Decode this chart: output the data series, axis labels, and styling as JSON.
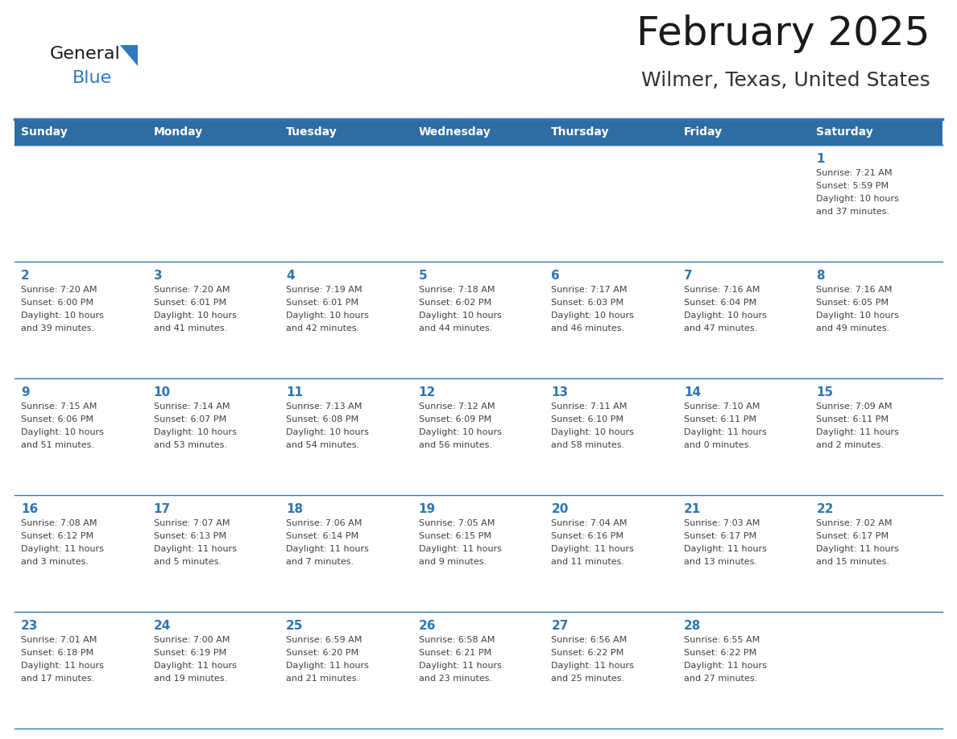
{
  "title": "February 2025",
  "subtitle": "Wilmer, Texas, United States",
  "days_of_week": [
    "Sunday",
    "Monday",
    "Tuesday",
    "Wednesday",
    "Thursday",
    "Friday",
    "Saturday"
  ],
  "header_bg": "#2E6DA4",
  "header_text": "#FFFFFF",
  "cell_bg": "#FFFFFF",
  "separator_color": "#2E75B6",
  "text_color": "#404040",
  "day_num_color": "#2E75B6",
  "title_color": "#1a1a1a",
  "subtitle_color": "#333333",
  "logo_general_color": "#1a1a1a",
  "logo_blue_color": "#2E7ABE",
  "logo_triangle_color": "#2E7ABE",
  "calendar": [
    [
      null,
      null,
      null,
      null,
      null,
      null,
      {
        "day": 1,
        "sunrise": "7:21 AM",
        "sunset": "5:59 PM",
        "daylight": "10 hours and 37 minutes."
      }
    ],
    [
      {
        "day": 2,
        "sunrise": "7:20 AM",
        "sunset": "6:00 PM",
        "daylight": "10 hours and 39 minutes."
      },
      {
        "day": 3,
        "sunrise": "7:20 AM",
        "sunset": "6:01 PM",
        "daylight": "10 hours and 41 minutes."
      },
      {
        "day": 4,
        "sunrise": "7:19 AM",
        "sunset": "6:01 PM",
        "daylight": "10 hours and 42 minutes."
      },
      {
        "day": 5,
        "sunrise": "7:18 AM",
        "sunset": "6:02 PM",
        "daylight": "10 hours and 44 minutes."
      },
      {
        "day": 6,
        "sunrise": "7:17 AM",
        "sunset": "6:03 PM",
        "daylight": "10 hours and 46 minutes."
      },
      {
        "day": 7,
        "sunrise": "7:16 AM",
        "sunset": "6:04 PM",
        "daylight": "10 hours and 47 minutes."
      },
      {
        "day": 8,
        "sunrise": "7:16 AM",
        "sunset": "6:05 PM",
        "daylight": "10 hours and 49 minutes."
      }
    ],
    [
      {
        "day": 9,
        "sunrise": "7:15 AM",
        "sunset": "6:06 PM",
        "daylight": "10 hours and 51 minutes."
      },
      {
        "day": 10,
        "sunrise": "7:14 AM",
        "sunset": "6:07 PM",
        "daylight": "10 hours and 53 minutes."
      },
      {
        "day": 11,
        "sunrise": "7:13 AM",
        "sunset": "6:08 PM",
        "daylight": "10 hours and 54 minutes."
      },
      {
        "day": 12,
        "sunrise": "7:12 AM",
        "sunset": "6:09 PM",
        "daylight": "10 hours and 56 minutes."
      },
      {
        "day": 13,
        "sunrise": "7:11 AM",
        "sunset": "6:10 PM",
        "daylight": "10 hours and 58 minutes."
      },
      {
        "day": 14,
        "sunrise": "7:10 AM",
        "sunset": "6:11 PM",
        "daylight": "11 hours and 0 minutes."
      },
      {
        "day": 15,
        "sunrise": "7:09 AM",
        "sunset": "6:11 PM",
        "daylight": "11 hours and 2 minutes."
      }
    ],
    [
      {
        "day": 16,
        "sunrise": "7:08 AM",
        "sunset": "6:12 PM",
        "daylight": "11 hours and 3 minutes."
      },
      {
        "day": 17,
        "sunrise": "7:07 AM",
        "sunset": "6:13 PM",
        "daylight": "11 hours and 5 minutes."
      },
      {
        "day": 18,
        "sunrise": "7:06 AM",
        "sunset": "6:14 PM",
        "daylight": "11 hours and 7 minutes."
      },
      {
        "day": 19,
        "sunrise": "7:05 AM",
        "sunset": "6:15 PM",
        "daylight": "11 hours and 9 minutes."
      },
      {
        "day": 20,
        "sunrise": "7:04 AM",
        "sunset": "6:16 PM",
        "daylight": "11 hours and 11 minutes."
      },
      {
        "day": 21,
        "sunrise": "7:03 AM",
        "sunset": "6:17 PM",
        "daylight": "11 hours and 13 minutes."
      },
      {
        "day": 22,
        "sunrise": "7:02 AM",
        "sunset": "6:17 PM",
        "daylight": "11 hours and 15 minutes."
      }
    ],
    [
      {
        "day": 23,
        "sunrise": "7:01 AM",
        "sunset": "6:18 PM",
        "daylight": "11 hours and 17 minutes."
      },
      {
        "day": 24,
        "sunrise": "7:00 AM",
        "sunset": "6:19 PM",
        "daylight": "11 hours and 19 minutes."
      },
      {
        "day": 25,
        "sunrise": "6:59 AM",
        "sunset": "6:20 PM",
        "daylight": "11 hours and 21 minutes."
      },
      {
        "day": 26,
        "sunrise": "6:58 AM",
        "sunset": "6:21 PM",
        "daylight": "11 hours and 23 minutes."
      },
      {
        "day": 27,
        "sunrise": "6:56 AM",
        "sunset": "6:22 PM",
        "daylight": "11 hours and 25 minutes."
      },
      {
        "day": 28,
        "sunrise": "6:55 AM",
        "sunset": "6:22 PM",
        "daylight": "11 hours and 27 minutes."
      },
      null
    ]
  ]
}
